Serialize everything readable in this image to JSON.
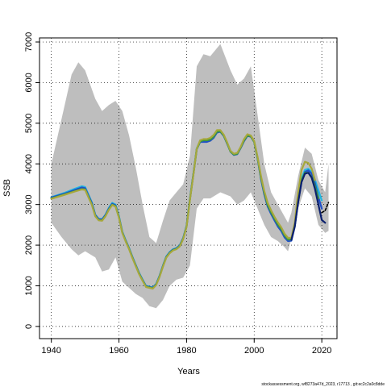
{
  "chart_data": {
    "type": "line",
    "xlabel": "Years",
    "ylabel": "SSB",
    "xlim": [
      1936.5,
      2024.5
    ],
    "ylim": [
      -300,
      7100
    ],
    "x_ticks": [
      1940,
      1960,
      1980,
      2000,
      2020
    ],
    "y_ticks": [
      0,
      1000,
      2000,
      3000,
      4000,
      5000,
      6000,
      7000
    ],
    "grid": true,
    "legend": "none",
    "colors": {
      "band": "#bebebe",
      "cyan": "#22b8e0",
      "blue": "#2050c8",
      "navy": "#0a1f6e",
      "green": "#3d9a3d",
      "olive": "#a7a83c",
      "black": "#000000"
    },
    "band": {
      "x": [
        1940,
        1943,
        1946,
        1948,
        1950,
        1953,
        1955,
        1957,
        1959,
        1961,
        1963,
        1965,
        1967,
        1969,
        1971,
        1973,
        1975,
        1977,
        1979,
        1981,
        1983,
        1985,
        1987,
        1990,
        1993,
        1995,
        1997,
        1999,
        2001,
        2003,
        2005,
        2007,
        2009,
        2010,
        2011,
        2013,
        2015,
        2017,
        2019,
        2021,
        2022
      ],
      "upper": [
        4000,
        5100,
        6200,
        6500,
        6300,
        5600,
        5300,
        5450,
        5550,
        5300,
        4700,
        3900,
        3000,
        2200,
        2050,
        2600,
        3100,
        3300,
        3500,
        4200,
        6400,
        6700,
        6650,
        6950,
        6300,
        5950,
        6100,
        6400,
        5200,
        4000,
        3300,
        3000,
        2700,
        2550,
        2800,
        3700,
        4400,
        4250,
        3600,
        3300,
        4000
      ],
      "lower": [
        2550,
        2200,
        1900,
        1750,
        1850,
        1700,
        1350,
        1400,
        1700,
        1100,
        950,
        800,
        700,
        500,
        450,
        650,
        1000,
        1150,
        1200,
        1500,
        2900,
        3150,
        3150,
        3300,
        3200,
        3000,
        3100,
        3300,
        2900,
        2500,
        2200,
        2100,
        1950,
        1850,
        2150,
        2900,
        3400,
        3200,
        2500,
        2300,
        2350
      ]
    },
    "series": [
      {
        "color": "cyan",
        "x": [
          1940,
          1944,
          1947,
          1949,
          1950,
          1952,
          1953,
          1954,
          1955,
          1956,
          1957,
          1958,
          1959,
          1960,
          1961,
          1962,
          1963,
          1964,
          1965,
          1966,
          1967,
          1968,
          1969,
          1970,
          1971,
          1972,
          1973,
          1974,
          1975,
          1976,
          1977,
          1978,
          1979,
          1980,
          1981,
          1982,
          1983,
          1984,
          1985,
          1986,
          1987,
          1988,
          1989,
          1990,
          1991,
          1992,
          1993,
          1994,
          1995,
          1996,
          1997,
          1998,
          1999,
          2000,
          2001,
          2002,
          2003,
          2004,
          2005,
          2006,
          2007,
          2008,
          2009,
          2010,
          2011,
          2012,
          2013,
          2014,
          2015,
          2016,
          2017,
          2018,
          2019,
          2020
        ],
        "y": [
          3180,
          3290,
          3390,
          3450,
          3430,
          3050,
          2750,
          2650,
          2640,
          2750,
          2920,
          3040,
          3000,
          2720,
          2330,
          2120,
          1930,
          1710,
          1510,
          1310,
          1150,
          1000,
          980,
          960,
          1050,
          1250,
          1500,
          1720,
          1830,
          1900,
          1930,
          2000,
          2180,
          2480,
          3150,
          3750,
          4380,
          4560,
          4560,
          4560,
          4580,
          4650,
          4780,
          4800,
          4700,
          4520,
          4320,
          4240,
          4260,
          4400,
          4570,
          4700,
          4680,
          4550,
          4140,
          3640,
          3260,
          2960,
          2780,
          2620,
          2470,
          2360,
          2200,
          2120,
          2130,
          2480,
          3120,
          3640,
          3850,
          3880,
          3800,
          3600,
          3350,
          3100
        ]
      },
      {
        "color": "blue",
        "x": [
          1940,
          1944,
          1947,
          1949,
          1950,
          1952,
          1953,
          1954,
          1955,
          1956,
          1957,
          1958,
          1959,
          1960,
          1961,
          1962,
          1963,
          1964,
          1965,
          1966,
          1967,
          1968,
          1969,
          1970,
          1971,
          1972,
          1973,
          1974,
          1975,
          1976,
          1977,
          1978,
          1979,
          1980,
          1981,
          1982,
          1983,
          1984,
          1985,
          1986,
          1987,
          1988,
          1989,
          1990,
          1991,
          1992,
          1993,
          1994,
          1995,
          1996,
          1997,
          1998,
          1999,
          2000,
          2001,
          2002,
          2003,
          2004,
          2005,
          2006,
          2007,
          2008,
          2009,
          2010,
          2011,
          2012,
          2013,
          2014,
          2015,
          2016,
          2017,
          2018,
          2019,
          2020
        ],
        "y": [
          3170,
          3270,
          3360,
          3420,
          3400,
          3030,
          2740,
          2640,
          2630,
          2740,
          2900,
          3020,
          2980,
          2700,
          2320,
          2110,
          1920,
          1700,
          1500,
          1300,
          1140,
          990,
          970,
          950,
          1040,
          1240,
          1490,
          1710,
          1820,
          1890,
          1920,
          1990,
          2170,
          2470,
          3140,
          3740,
          4360,
          4540,
          4540,
          4540,
          4570,
          4640,
          4770,
          4790,
          4690,
          4500,
          4300,
          4220,
          4240,
          4390,
          4560,
          4690,
          4670,
          4540,
          4130,
          3630,
          3250,
          2950,
          2770,
          2610,
          2460,
          2350,
          2190,
          2100,
          2110,
          2450,
          3060,
          3560,
          3800,
          3840,
          3760,
          3520,
          3180,
          2900
        ]
      },
      {
        "color": "green",
        "x": [
          1940,
          1944,
          1947,
          1949,
          1950,
          1952,
          1953,
          1954,
          1955,
          1956,
          1957,
          1958,
          1959,
          1960,
          1961,
          1962,
          1963,
          1964,
          1965,
          1966,
          1967,
          1968,
          1969,
          1970,
          1971,
          1972,
          1973,
          1974,
          1975,
          1976,
          1977,
          1978,
          1979,
          1980,
          1981,
          1982,
          1983,
          1984,
          1985,
          1986,
          1987,
          1988,
          1989,
          1990,
          1991,
          1992,
          1993,
          1994,
          1995,
          1996,
          1997,
          1998,
          1999,
          2000,
          2001,
          2002,
          2003,
          2004,
          2005,
          2006,
          2007,
          2008,
          2009,
          2010,
          2011,
          2012,
          2013,
          2014,
          2015,
          2016,
          2017,
          2018,
          2019
        ],
        "y": [
          3150,
          3250,
          3330,
          3380,
          3370,
          3000,
          2720,
          2620,
          2610,
          2720,
          2880,
          3000,
          2960,
          2690,
          2310,
          2100,
          1910,
          1690,
          1490,
          1290,
          1130,
          980,
          960,
          940,
          1030,
          1230,
          1480,
          1700,
          1810,
          1880,
          1910,
          1980,
          2160,
          2460,
          3130,
          3730,
          4360,
          4550,
          4580,
          4580,
          4600,
          4670,
          4790,
          4800,
          4700,
          4510,
          4300,
          4230,
          4250,
          4400,
          4580,
          4700,
          4680,
          4540,
          4140,
          3660,
          3290,
          2990,
          2810,
          2660,
          2510,
          2400,
          2240,
          2140,
          2140,
          2480,
          3100,
          3600,
          3780,
          3780,
          3680,
          3450,
          3150
        ]
      },
      {
        "color": "olive",
        "x": [
          1940,
          1944,
          1947,
          1949,
          1950,
          1952,
          1953,
          1954,
          1955,
          1956,
          1957,
          1958,
          1959,
          1960,
          1961,
          1962,
          1963,
          1964,
          1965,
          1966,
          1967,
          1968,
          1969,
          1970,
          1971,
          1972,
          1973,
          1974,
          1975,
          1976,
          1977,
          1978,
          1979,
          1980,
          1981,
          1982,
          1983,
          1984,
          1985,
          1986,
          1987,
          1988,
          1989,
          1990,
          1991,
          1992,
          1993,
          1994,
          1995,
          1996,
          1997,
          1998,
          1999,
          2000,
          2001,
          2002,
          2003,
          2004,
          2005,
          2006,
          2007,
          2008,
          2009,
          2010,
          2011,
          2012,
          2013,
          2014,
          2015,
          2016,
          2017,
          2018
        ],
        "y": [
          3140,
          3240,
          3320,
          3370,
          3360,
          2990,
          2710,
          2610,
          2600,
          2710,
          2870,
          2990,
          2950,
          2680,
          2300,
          2090,
          1900,
          1680,
          1480,
          1280,
          1120,
          970,
          950,
          930,
          1020,
          1220,
          1470,
          1690,
          1800,
          1870,
          1900,
          1970,
          2150,
          2450,
          3120,
          3720,
          4370,
          4580,
          4610,
          4610,
          4640,
          4710,
          4830,
          4830,
          4720,
          4530,
          4320,
          4250,
          4270,
          4420,
          4610,
          4730,
          4700,
          4560,
          4170,
          3700,
          3330,
          3040,
          2860,
          2700,
          2560,
          2440,
          2280,
          2180,
          2180,
          2560,
          3300,
          3850,
          4050,
          4020,
          3880,
          3600
        ]
      },
      {
        "color": "navy",
        "x": [
          2011,
          2012,
          2013,
          2014,
          2015,
          2016,
          2017,
          2018,
          2019,
          2020,
          2021
        ],
        "y": [
          2130,
          2460,
          3060,
          3550,
          3760,
          3780,
          3660,
          3380,
          3000,
          2620,
          2550
        ]
      },
      {
        "color": "black",
        "x": [
          2020,
          2021,
          2022
        ],
        "y": [
          2800,
          2850,
          3050
        ],
        "dashed": true
      }
    ]
  },
  "footer": {
    "credit": "stockassessment.org, wf8273a47d_2023, r17713 , git:ec2c2a0c8dde"
  }
}
